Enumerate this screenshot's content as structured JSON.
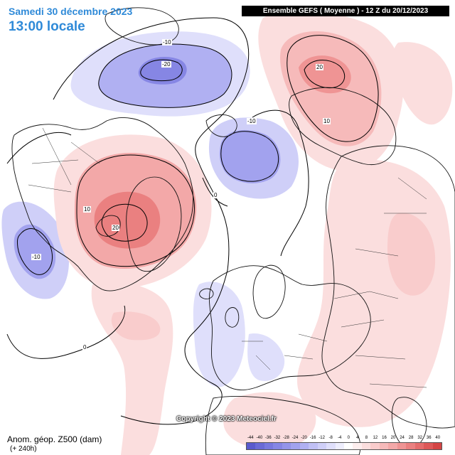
{
  "header": {
    "date_text": "Samedi 30 décembre 2023",
    "time_text": "13:00 locale",
    "run_text": "Ensemble GEFS  ( Moyenne )  -  12 Z du 20/12/2023"
  },
  "footer": {
    "field_title": "Anom. géop. Z500 (dam)",
    "field_sub": "(+ 240h)",
    "copyright": "Copyright © 2023 Meteociel.fr"
  },
  "contour_labels": {
    "neg10_pacific": "-10",
    "neg20_pacific": "-20",
    "pos20_siberia": "20",
    "pos10_siberia": "10",
    "pos10_canada": "10",
    "pos20_canada": "20",
    "neg10_kara": "-10",
    "zero_arctic": "0",
    "neg10_us": "-10",
    "zero_atlantic": "0"
  },
  "color_scale": {
    "labels": [
      "-44",
      "-40",
      "-36",
      "-32",
      "-28",
      "-24",
      "-20",
      "-16",
      "-12",
      "-8",
      "-4",
      "0",
      "4",
      "8",
      "12",
      "16",
      "20",
      "24",
      "28",
      "32",
      "36",
      "40"
    ],
    "colors": [
      "#5a5acd",
      "#6a6ad6",
      "#7878de",
      "#8686e4",
      "#9494e9",
      "#a2a2ee",
      "#b0b0f2",
      "#c0c0f5",
      "#cfcff8",
      "#dfdffb",
      "#eeeefd",
      "#ffffff",
      "#fdeeee",
      "#fbdede",
      "#f9cccc",
      "#f6baba",
      "#f3a8a8",
      "#ef9494",
      "#ea8080",
      "#e46c6c",
      "#dd5858",
      "#d44444"
    ]
  }
}
